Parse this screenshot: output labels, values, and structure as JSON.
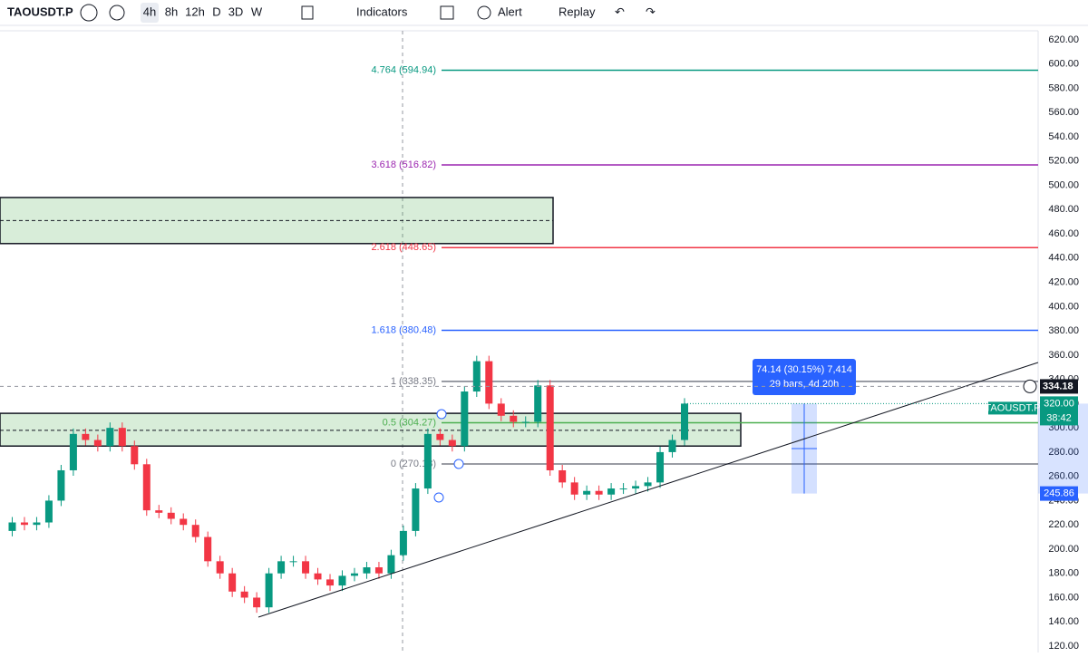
{
  "toolbar": {
    "symbol": "TAOUSDT.P",
    "intervals": [
      "4h",
      "8h",
      "12h",
      "D",
      "3D",
      "W"
    ],
    "indicators": "Indicators",
    "alert": "Alert",
    "replay": "Replay"
  },
  "chart": {
    "price_axis": {
      "ylim": [
        120,
        620
      ],
      "yticks": [
        {
          "value": 120,
          "label": "120.00"
        },
        {
          "value": 140,
          "label": "140.00"
        },
        {
          "value": 160,
          "label": "160.00"
        },
        {
          "value": 180,
          "label": "180.00"
        },
        {
          "value": 200,
          "label": "200.00"
        },
        {
          "value": 220,
          "label": "220.00"
        },
        {
          "value": 240,
          "label": "240.00"
        },
        {
          "value": 260,
          "label": "260.00"
        },
        {
          "value": 280,
          "label": "280.00"
        },
        {
          "value": 300,
          "label": "300.00"
        },
        {
          "value": 320,
          "label": "320.00"
        },
        {
          "value": 340,
          "label": "340.00"
        },
        {
          "value": 360,
          "label": "360.00"
        },
        {
          "value": 380,
          "label": "380.00"
        },
        {
          "value": 400,
          "label": "400.00"
        },
        {
          "value": 420,
          "label": "420.00"
        },
        {
          "value": 440,
          "label": "440.00"
        },
        {
          "value": 460,
          "label": "460.00"
        },
        {
          "value": 480,
          "label": "480.00"
        },
        {
          "value": 500,
          "label": "500.00"
        },
        {
          "value": 520,
          "label": "520.00"
        },
        {
          "value": 540,
          "label": "540.00"
        },
        {
          "value": 560,
          "label": "560.00"
        },
        {
          "value": 580,
          "label": "580.00"
        },
        {
          "value": 600,
          "label": "600.00"
        },
        {
          "value": 620,
          "label": "620.00"
        }
      ]
    },
    "closes": [
      215,
      222,
      220,
      222,
      240,
      265,
      295,
      290,
      285,
      300,
      285,
      270,
      232,
      230,
      225,
      220,
      210,
      190,
      180,
      165,
      160,
      152,
      180,
      190,
      190,
      180,
      175,
      170,
      178,
      180,
      185,
      180,
      195,
      215,
      250,
      295,
      290,
      285,
      330,
      355,
      320,
      310,
      305,
      305,
      335,
      265,
      255,
      245,
      248,
      245,
      250,
      250,
      252,
      255,
      280,
      290,
      320
    ],
    "up_color": "#089981",
    "down_color": "#f23645",
    "fib_levels": [
      {
        "value": 594.94,
        "label": "4.764 (594.94)",
        "color": "#089981"
      },
      {
        "value": 516.82,
        "label": "3.618 (516.82)",
        "color": "#9c27b0"
      },
      {
        "value": 448.65,
        "label": "2.618 (448.65)",
        "color": "#f23645"
      },
      {
        "value": 380.48,
        "label": "1.618 (380.48)",
        "color": "#2962ff"
      },
      {
        "value": 338.35,
        "label": "1 (338.35)",
        "color": "#787b86"
      },
      {
        "value": 304.27,
        "label": "0.5 (304.27)",
        "color": "#4caf50"
      },
      {
        "value": 270.18,
        "label": "0 (270.18)",
        "color": "#787b86"
      }
    ],
    "zones": [
      {
        "top": 490,
        "bottom": 452,
        "mid": 471
      },
      {
        "top": 312,
        "bottom": 285,
        "mid": 298
      }
    ],
    "measure": {
      "line1": "74.14 (30.15%) 7,414",
      "line2": "29 bars, 4d 20h",
      "top": 320,
      "bottom": 245.86
    },
    "badges": {
      "crosshair": {
        "value": 334.18,
        "label": "334.18"
      },
      "symbol": "TAOUSDT.P",
      "last": {
        "value": 320,
        "label": "320.00"
      },
      "countdown": "38:42",
      "measure_low": {
        "value": 245.86,
        "label": "245.86"
      }
    }
  }
}
